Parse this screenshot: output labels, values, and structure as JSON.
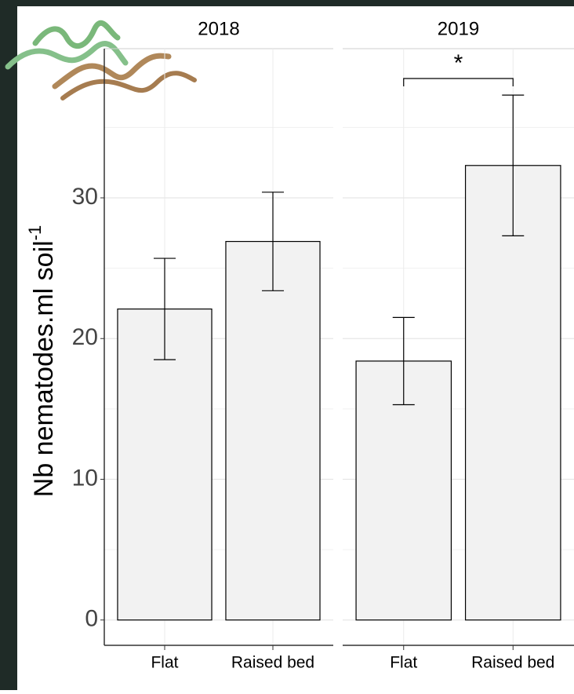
{
  "chart_data": [
    {
      "type": "bar",
      "title": "2018",
      "y_label": {
        "text": "Nb nematodes.ml soil",
        "superscript": "-1"
      },
      "categories": [
        "Flat",
        "Raised bed"
      ],
      "values": [
        22.1,
        26.9
      ],
      "errors": [
        3.6,
        3.5
      ],
      "color": "#f2f2f2",
      "ylim": [
        -1.8,
        40.6
      ],
      "yticks": [
        0,
        10,
        20,
        30
      ],
      "minor_yticks": [
        5,
        15,
        25,
        35
      ],
      "grid": true
    },
    {
      "type": "bar",
      "title": "2019",
      "categories": [
        "Flat",
        "Raised bed"
      ],
      "values": [
        18.4,
        32.3
      ],
      "errors": [
        3.1,
        5.0
      ],
      "color": "#f2f2f2",
      "ylim": [
        -1.8,
        40.6
      ],
      "yticks": [
        0,
        10,
        20,
        30
      ],
      "minor_yticks": [
        5,
        15,
        25,
        35
      ],
      "grid": true,
      "annotation": "*"
    }
  ]
}
